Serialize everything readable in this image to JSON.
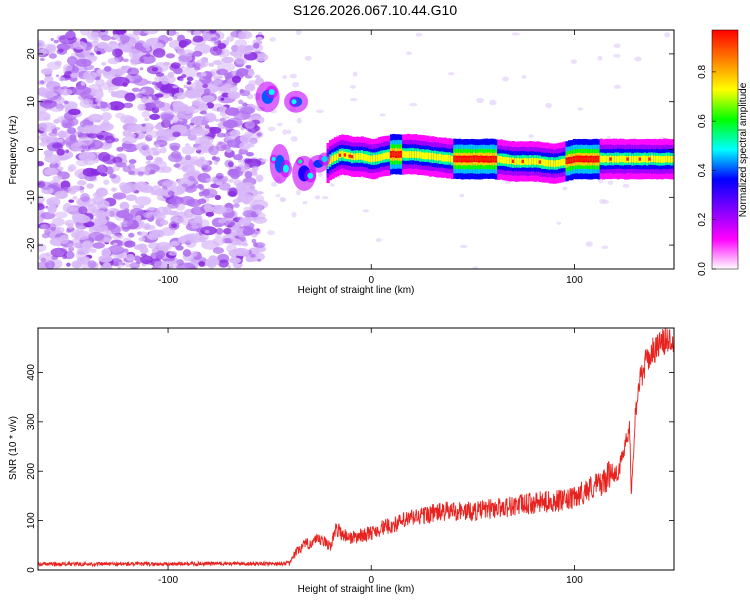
{
  "title": "S126.2026.067.10.44.G10",
  "chart_data": [
    {
      "type": "heatmap",
      "xlabel": "Height of straight line (km)",
      "ylabel": "Frequency (Hz)",
      "xlim": [
        -164,
        149
      ],
      "ylim": [
        -25,
        25
      ],
      "x_ticks": [
        -100,
        0,
        100
      ],
      "y_ticks": [
        -20,
        -10,
        0,
        10,
        20
      ],
      "grid": false,
      "colorbar": {
        "label": "Normalized spectral amplitude",
        "range": [
          0.0,
          0.97
        ],
        "ticks": [
          0.0,
          0.2,
          0.4,
          0.6,
          0.8
        ]
      },
      "colormap": [
        "#ffffff",
        "#ff00ff",
        "#8000ff",
        "#0000ff",
        "#00ffff",
        "#00ff00",
        "#ffff00",
        "#ff8000",
        "#ff0000"
      ],
      "noise_region_x": [
        -164,
        -54
      ],
      "signal_track": {
        "x": [
          -55,
          -50,
          -45,
          -40,
          -35,
          -30,
          -25,
          -20,
          -15,
          -10,
          -5,
          0,
          10,
          20,
          30,
          40,
          50,
          60,
          70,
          80,
          90,
          100,
          110,
          120,
          130,
          140,
          149
        ],
        "frequency": [
          12,
          10,
          9,
          10,
          11,
          -3,
          -4,
          -2,
          -1,
          -1.5,
          -1.5,
          -2,
          -1,
          -1,
          -1.5,
          -2,
          -2,
          -2,
          -2.5,
          -2.5,
          -3,
          -2,
          -2,
          -2,
          -2,
          -2,
          -2
        ]
      }
    },
    {
      "type": "line",
      "xlabel": "Height of straight line (km)",
      "ylabel": "SNR (10 * v/v)",
      "xlim": [
        -164,
        149
      ],
      "ylim": [
        0,
        490
      ],
      "x_ticks": [
        -100,
        0,
        100
      ],
      "y_ticks": [
        0,
        100,
        200,
        300,
        400
      ],
      "grid": false,
      "series": [
        {
          "color": "#e8231f",
          "x": [
            -164,
            -140,
            -120,
            -100,
            -80,
            -60,
            -45,
            -40,
            -38,
            -35,
            -30,
            -25,
            -20,
            -17,
            -15,
            -10,
            -5,
            0,
            5,
            10,
            20,
            30,
            40,
            50,
            60,
            70,
            80,
            90,
            95,
            100,
            105,
            110,
            115,
            118,
            120,
            122,
            125,
            127,
            128,
            130,
            132,
            135,
            138,
            140,
            145,
            149
          ],
          "y": [
            12,
            12,
            12,
            12,
            13,
            13,
            13,
            14,
            30,
            45,
            55,
            60,
            50,
            85,
            75,
            65,
            70,
            75,
            85,
            90,
            105,
            115,
            120,
            118,
            125,
            130,
            135,
            140,
            140,
            145,
            160,
            170,
            180,
            200,
            195,
            200,
            260,
            290,
            160,
            320,
            380,
            420,
            440,
            450,
            465,
            470
          ]
        }
      ]
    }
  ]
}
